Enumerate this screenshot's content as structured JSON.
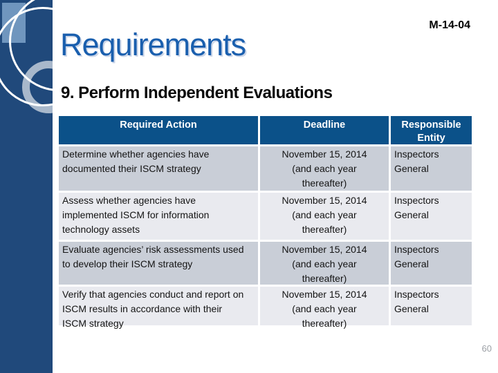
{
  "slide": {
    "doc_tag": "M-14-04",
    "title": "Requirements",
    "subtitle": "9. Perform Independent Evaluations",
    "page_number": "60"
  },
  "table": {
    "headers": [
      "Required Action",
      "Deadline",
      "Responsible Entity"
    ],
    "rows": [
      {
        "action": "Determine whether agencies have documented their ISCM strategy",
        "deadline": "November 15, 2014\n(and each year\nthereafter)",
        "entity": "Inspectors General"
      },
      {
        "action": "Assess whether agencies have implemented ISCM for information technology assets",
        "deadline": "November 15, 2014\n(and each year\nthereafter)",
        "entity": "Inspectors General"
      },
      {
        "action": "Evaluate agencies’ risk assessments used to develop their ISCM strategy",
        "deadline": "November 15, 2014\n(and each year\nthereafter)",
        "entity": "Inspectors General"
      },
      {
        "action": "Verify that agencies conduct and report on ISCM results in accordance with their ISCM strategy",
        "deadline": "November 15, 2014\n(and each year\nthereafter)",
        "entity": "Inspectors General"
      }
    ]
  },
  "colors": {
    "sidebar": "#20497B",
    "sidebar-square": "#7096BE",
    "sidebar-ring": "#A8B8CB",
    "title": "#1A5FAE",
    "header-bg": "#0B5189",
    "row-odd": "#C9CED7",
    "row-even": "#E9EAEF"
  }
}
